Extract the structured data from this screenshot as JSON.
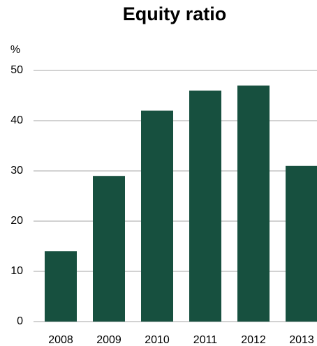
{
  "chart_data": {
    "type": "bar",
    "title": "Equity ratio",
    "y_label": "%",
    "categories": [
      "2008",
      "2009",
      "2010",
      "2011",
      "2012",
      "2013"
    ],
    "values": [
      14,
      29,
      42,
      46,
      47,
      31
    ],
    "color": "#17503f",
    "ylim": [
      0,
      50
    ],
    "yticks": [
      0,
      10,
      20,
      30,
      40,
      50
    ],
    "grid": true
  }
}
